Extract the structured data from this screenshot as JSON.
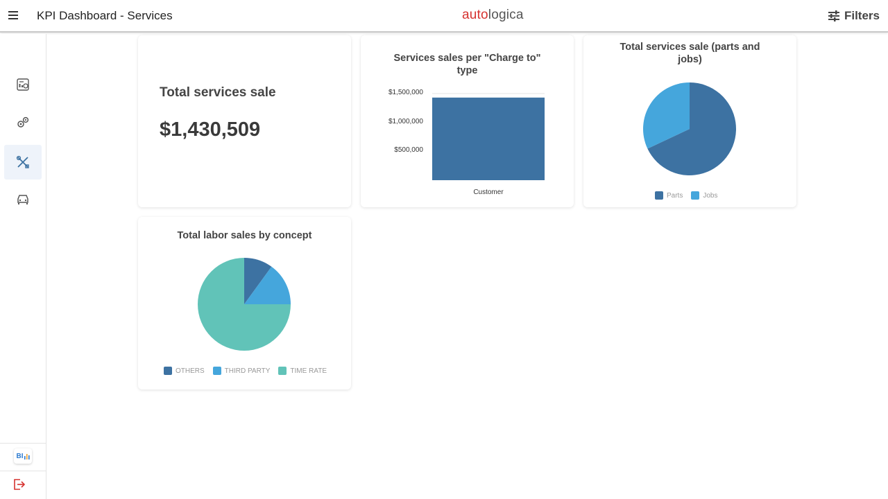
{
  "header": {
    "title": "KPI Dashboard - Services",
    "logo_part1": "auto",
    "logo_part2": "logica",
    "filters_label": "Filters"
  },
  "sidebar": {
    "items": [
      {
        "icon": "dashboard-icon"
      },
      {
        "icon": "gears-icon"
      },
      {
        "icon": "tools-icon",
        "active": true
      },
      {
        "icon": "car-icon"
      }
    ],
    "bi_label": "BI"
  },
  "kpi": {
    "label": "Total services sale",
    "value": "$1,430,509"
  },
  "charts": {
    "bar": {
      "title": "Services sales per \"Charge to\" type"
    },
    "pie1": {
      "title": "Total services sale (parts and jobs)"
    },
    "pie2": {
      "title": "Total labor sales by concept"
    }
  },
  "colors": {
    "dark_blue": "#3d72a2",
    "light_blue": "#45a6dc",
    "teal": "#61c3b8",
    "brand_red": "#d6322f"
  },
  "chart_data": [
    {
      "type": "bar",
      "title": "Services sales per \"Charge to\" type",
      "categories": [
        "Customer"
      ],
      "values": [
        1430509
      ],
      "yticks": [
        "$500,000",
        "$1,000,000",
        "$1,500,000"
      ],
      "ytick_values": [
        500000,
        1000000,
        1500000
      ],
      "ylim": [
        0,
        1500000
      ]
    },
    {
      "type": "pie",
      "title": "Total services sale (parts and jobs)",
      "labels": [
        "Parts",
        "Jobs"
      ],
      "values": [
        68,
        32
      ]
    },
    {
      "type": "pie",
      "title": "Total labor sales by concept",
      "labels": [
        "OTHERS",
        "THIRD PARTY",
        "TIME RATE"
      ],
      "values": [
        10,
        15,
        75
      ]
    }
  ]
}
